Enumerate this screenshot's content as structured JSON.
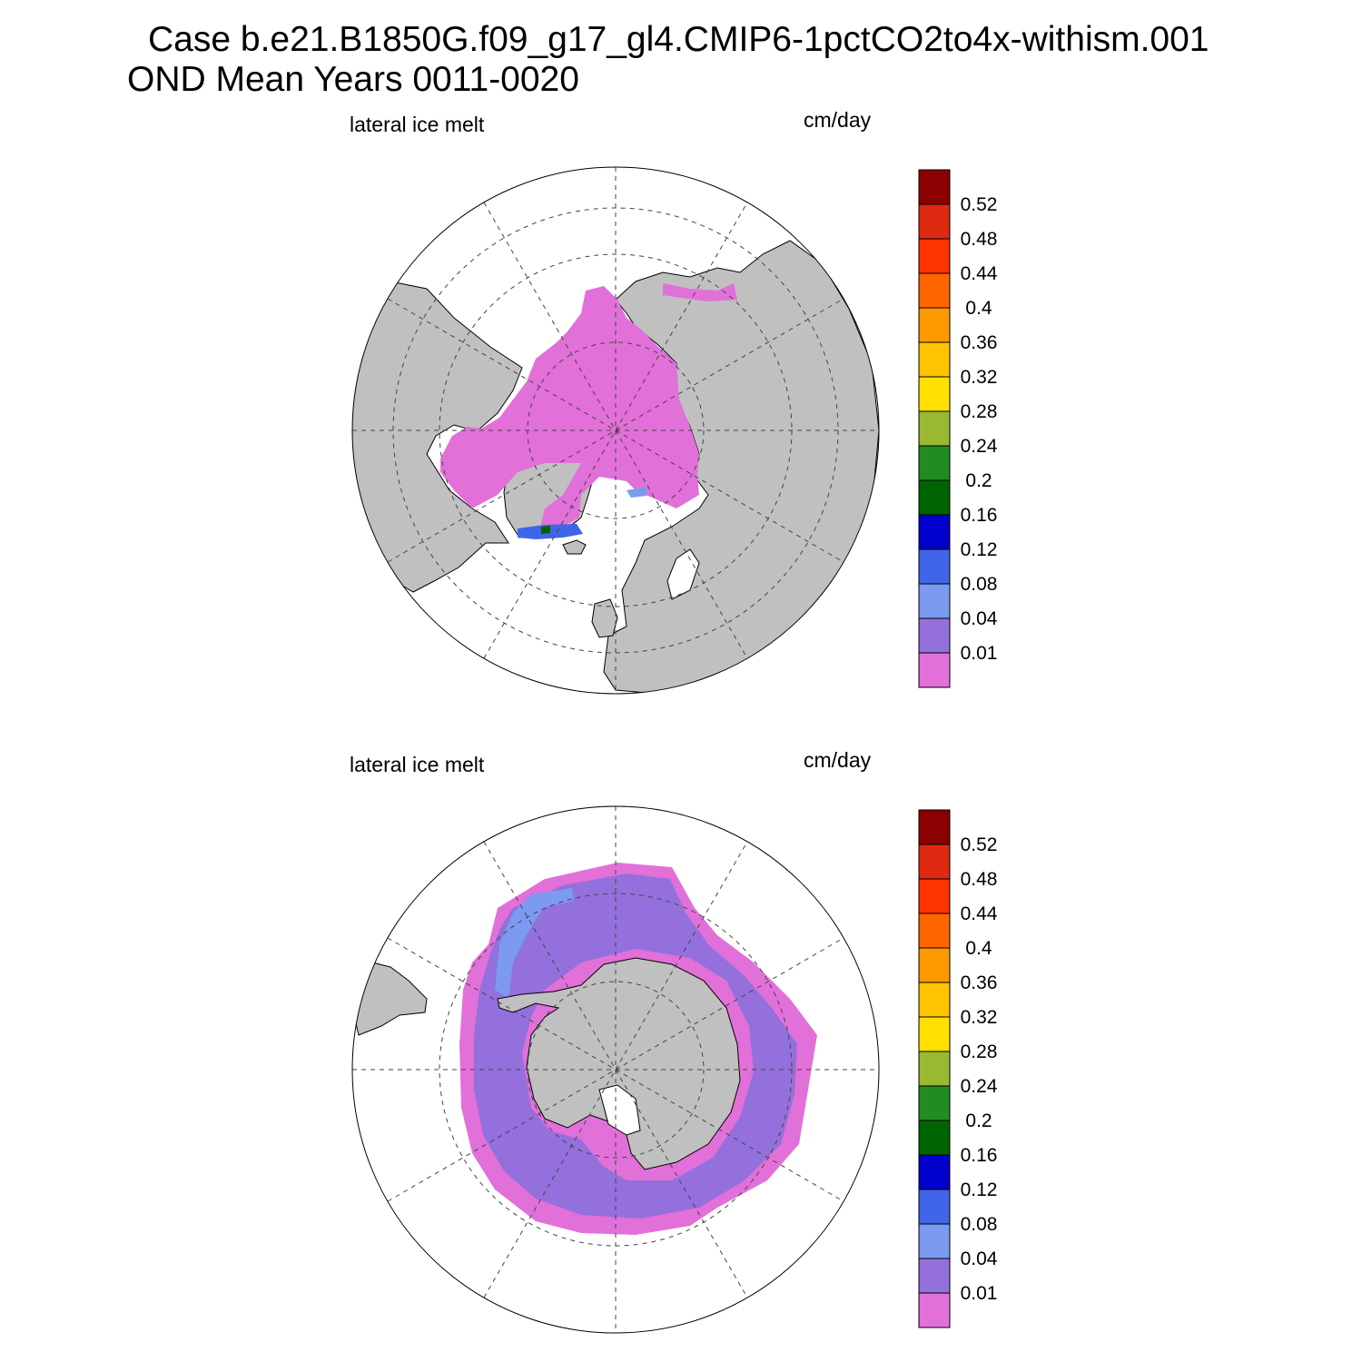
{
  "title": {
    "line1": "Case b.e21.B1850G.f09_g17_gl4.CMIP6-1pctCO2to4x-withism.001",
    "line2": "OND Mean   Years 0011-0020"
  },
  "panels": [
    {
      "id": "north",
      "variable_label": "lateral ice melt",
      "units_label": "cm/day"
    },
    {
      "id": "south",
      "variable_label": "lateral ice melt",
      "units_label": "cm/day"
    }
  ],
  "colorbar": {
    "levels": [
      "0.01",
      "0.04",
      "0.08",
      "0.12",
      "0.16",
      "0.2",
      "0.24",
      "0.28",
      "0.32",
      "0.36",
      "0.4",
      "0.44",
      "0.48",
      "0.52"
    ],
    "colors": [
      "#e270d9",
      "#9370db",
      "#7b9af0",
      "#4065e8",
      "#0000cd",
      "#006400",
      "#228b22",
      "#9ab832",
      "#ffe000",
      "#ffc300",
      "#ff9900",
      "#ff6600",
      "#ff3300",
      "#dd2a10",
      "#8b0000"
    ]
  },
  "map_colors": {
    "land": "#c0c0c0",
    "ocean": "#ffffff"
  }
}
